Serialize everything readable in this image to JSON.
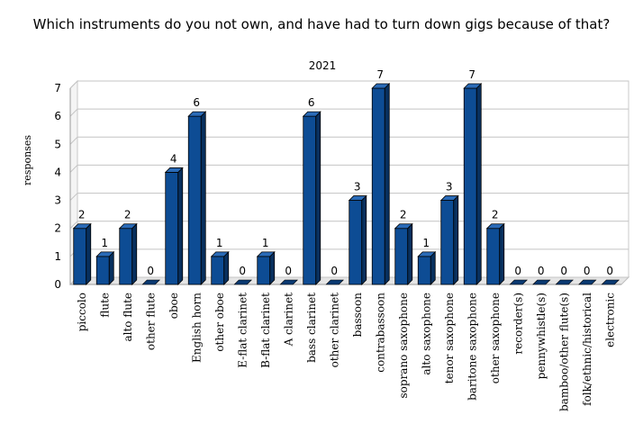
{
  "chart_data": {
    "type": "bar",
    "title": "Which instruments do you not own, and have had to turn down gigs because of that?",
    "subtitle": "2021",
    "ylabel": "responses",
    "xlabel": "",
    "ylim": [
      0,
      7
    ],
    "yticks": [
      0,
      1,
      2,
      3,
      4,
      5,
      6,
      7
    ],
    "grid": true,
    "legend": "none",
    "bar_color": "#0d4c94",
    "categories": [
      "piccolo",
      "flute",
      "alto flute",
      "other flute",
      "oboe",
      "English horn",
      "other oboe",
      "E-flat clarinet",
      "B-flat clarinet",
      "A clarinet",
      "bass clarinet",
      "other clarinet",
      "bassoon",
      "contrabassoon",
      "soprano saxophone",
      "alto saxophone",
      "tenor saxophone",
      "baritone saxophone",
      "other saxophone",
      "recorder(s)",
      "pennywhistle(s)",
      "bamboo/other flute(s)",
      "folk/ethnic/historical",
      "electronic"
    ],
    "values": [
      2,
      1,
      2,
      0,
      4,
      6,
      1,
      0,
      1,
      0,
      6,
      0,
      3,
      7,
      2,
      1,
      3,
      7,
      2,
      0,
      0,
      0,
      0,
      0
    ]
  }
}
